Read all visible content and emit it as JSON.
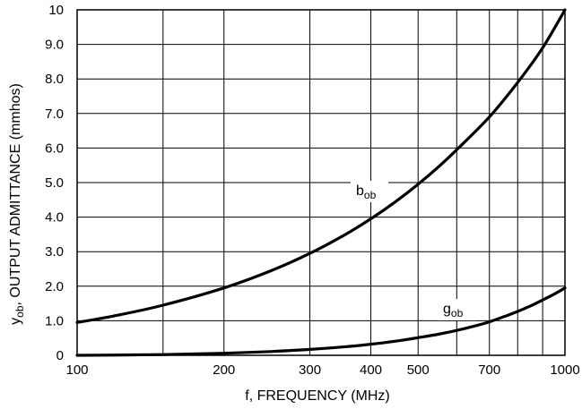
{
  "chart_data": {
    "type": "line",
    "xscale": "log",
    "xlim": [
      100,
      1000
    ],
    "ylim": [
      0,
      10
    ],
    "grid": true,
    "xlabel": "f, FREQUENCY (MHz)",
    "ylabel_main": "y",
    "ylabel_sub": "ob",
    "ylabel_rest": ", OUTPUT ADMITTANCE (mmhos)",
    "x_ticks": [
      100,
      200,
      300,
      400,
      500,
      700,
      1000
    ],
    "x_tick_labels": [
      "100",
      "200",
      "300",
      "400",
      "500",
      "700",
      "1000"
    ],
    "x_gridlines": [
      100,
      150,
      200,
      300,
      400,
      500,
      600,
      700,
      800,
      900,
      1000
    ],
    "y_ticks": [
      0,
      1,
      2,
      3,
      4,
      5,
      6,
      7,
      8,
      9,
      10
    ],
    "y_tick_labels": [
      "0",
      "1.0",
      "2.0",
      "3.0",
      "4.0",
      "5.0",
      "6.0",
      "7.0",
      "8.0",
      "9.0",
      "10"
    ],
    "series": [
      {
        "name_main": "b",
        "name_sub": "ob",
        "x": [
          100,
          120,
          150,
          200,
          250,
          300,
          350,
          400,
          450,
          500,
          550,
          600,
          700,
          800,
          900,
          1000
        ],
        "y": [
          0.95,
          1.15,
          1.45,
          1.95,
          2.45,
          2.95,
          3.45,
          3.95,
          4.45,
          4.95,
          5.45,
          5.95,
          6.9,
          7.9,
          8.9,
          10.0
        ]
      },
      {
        "name_main": "g",
        "name_sub": "ob",
        "x": [
          100,
          150,
          200,
          250,
          300,
          350,
          400,
          450,
          500,
          550,
          600,
          650,
          700,
          750,
          800,
          850,
          900,
          950,
          1000
        ],
        "y": [
          0.0,
          0.02,
          0.06,
          0.11,
          0.17,
          0.24,
          0.32,
          0.41,
          0.51,
          0.61,
          0.72,
          0.84,
          0.97,
          1.12,
          1.27,
          1.43,
          1.6,
          1.77,
          1.95
        ]
      }
    ]
  }
}
